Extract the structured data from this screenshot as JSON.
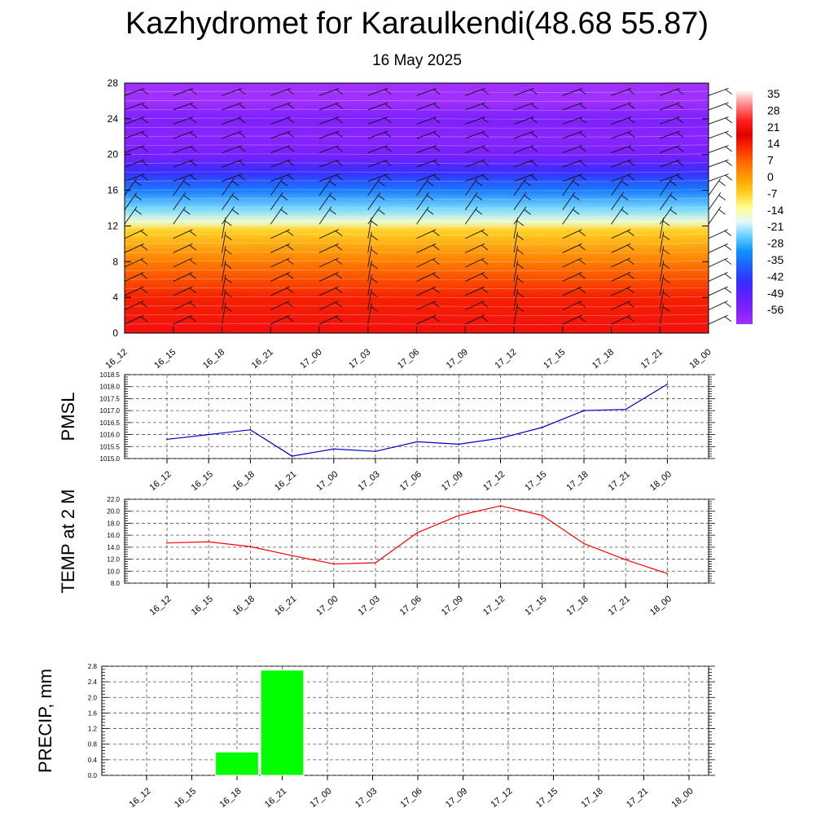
{
  "header": {
    "title": "Kazhydromet for Karaulkendi(48.68 55.87)",
    "subtitle": "16 May 2025"
  },
  "colorbar": {
    "labels": [
      "35",
      "28",
      "21",
      "14",
      "7",
      "0",
      "-7",
      "-14",
      "-21",
      "-28",
      "-35",
      "-42",
      "-49",
      "-56"
    ],
    "colors": [
      "#fff2f2",
      "#ff8080",
      "#ff2020",
      "#e00000",
      "#ff3000",
      "#ff7000",
      "#ffa000",
      "#ffd020",
      "#ffff90",
      "#e0f8ff",
      "#60d0ff",
      "#1090ff",
      "#2060ff",
      "#3030ff",
      "#6020ff",
      "#8020ff",
      "#a030ff"
    ]
  },
  "chart_data": [
    {
      "type": "heatmap",
      "title": "",
      "xlabel": "",
      "ylabel": "",
      "categories": [
        "16_12",
        "16_15",
        "16_18",
        "16_21",
        "17_00",
        "17_03",
        "17_06",
        "17_09",
        "17_12",
        "17_15",
        "17_18",
        "17_21",
        "18_00"
      ],
      "yticks": [
        "0",
        "4",
        "8",
        "12",
        "16",
        "20",
        "24",
        "28"
      ],
      "ylim": [
        0,
        28
      ],
      "colorbar_range": [
        -56,
        35
      ],
      "profile": [
        {
          "level": 0,
          "value": 21
        },
        {
          "level": 4,
          "value": 14
        },
        {
          "level": 8,
          "value": 5
        },
        {
          "level": 11.5,
          "value": -5
        },
        {
          "level": 12.5,
          "value": -14
        },
        {
          "level": 14,
          "value": -21
        },
        {
          "level": 16,
          "value": -30
        },
        {
          "level": 18,
          "value": -40
        },
        {
          "level": 20,
          "value": -49
        },
        {
          "level": 22,
          "value": -52
        },
        {
          "level": 24,
          "value": -50
        },
        {
          "level": 26,
          "value": -56
        },
        {
          "level": 28,
          "value": -58
        }
      ],
      "wind_barbs": true,
      "grid": false
    },
    {
      "type": "line",
      "title": "",
      "ylabel": "PMSL",
      "categories": [
        "16_12",
        "16_15",
        "16_18",
        "16_21",
        "17_00",
        "17_03",
        "17_06",
        "17_09",
        "17_12",
        "17_15",
        "17_18",
        "17_21",
        "18_00"
      ],
      "yticks": [
        "1015.0",
        "1015.5",
        "1016.0",
        "1016.5",
        "1017.0",
        "1017.5",
        "1018.0",
        "1018.5"
      ],
      "ylim": [
        1015.0,
        1018.5
      ],
      "series": [
        {
          "values": [
            1015.8,
            1016.0,
            1016.2,
            1015.1,
            1015.4,
            1015.3,
            1015.7,
            1015.6,
            1015.85,
            1016.3,
            1017.0,
            1017.05,
            1018.1
          ],
          "color": "#0000cc"
        }
      ],
      "grid": true
    },
    {
      "type": "line",
      "title": "",
      "ylabel": "TEMP at 2 M",
      "categories": [
        "16_12",
        "16_15",
        "16_18",
        "16_21",
        "17_00",
        "17_03",
        "17_06",
        "17_09",
        "17_12",
        "17_15",
        "17_18",
        "17_21",
        "18_00"
      ],
      "yticks": [
        "8.0",
        "10.0",
        "12.0",
        "14.0",
        "16.0",
        "18.0",
        "20.0",
        "22.0"
      ],
      "ylim": [
        8.0,
        22.0
      ],
      "series": [
        {
          "values": [
            14.7,
            14.9,
            14.1,
            12.6,
            11.2,
            11.4,
            16.4,
            19.3,
            20.9,
            19.3,
            14.6,
            11.9,
            9.6
          ],
          "color": "#ff0000"
        }
      ],
      "grid": true
    },
    {
      "type": "bar",
      "title": "",
      "ylabel": "PRECIP, mm",
      "categories": [
        "16_12",
        "16_15",
        "16_18",
        "16_21",
        "17_00",
        "17_03",
        "17_06",
        "17_09",
        "17_12",
        "17_15",
        "17_18",
        "17_21",
        "18_00"
      ],
      "yticks": [
        "0.0",
        "0.4",
        "0.8",
        "1.2",
        "1.6",
        "2.0",
        "2.4",
        "2.8"
      ],
      "ylim": [
        0.0,
        2.8
      ],
      "values": [
        0,
        0,
        0.6,
        2.7,
        0,
        0,
        0,
        0,
        0,
        0,
        0,
        0,
        0
      ],
      "color": "#00ff00",
      "grid": true
    }
  ]
}
